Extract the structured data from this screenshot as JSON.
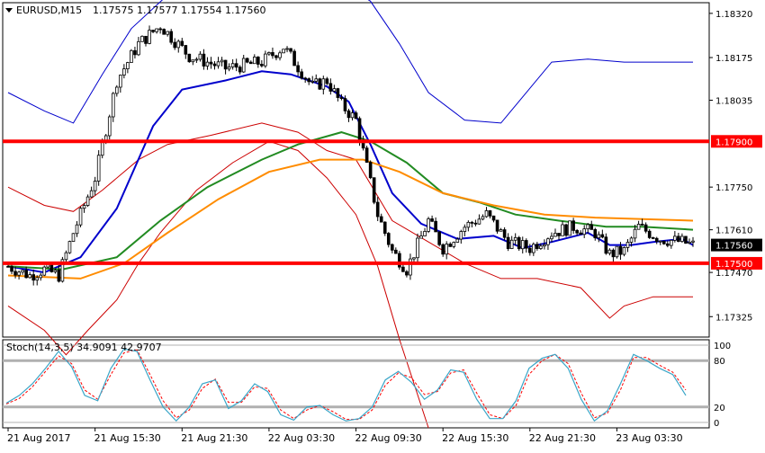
{
  "header": {
    "symbol": "EURUSD,M15",
    "ohlc": "1.17575 1.17577 1.17554 1.17560"
  },
  "colors": {
    "background": "#ffffff",
    "bull_candle": "#ffffff",
    "bear_candle": "#000000",
    "candle_outline": "#000000",
    "ma_fast": "#0000cc",
    "ma_mid": "#228b22",
    "ma_slow": "#ff8c00",
    "envelope_upper": "#0000cc",
    "envelope_lower": "#cc0000",
    "level_line": "#ff0000",
    "level_badge": "#ff0000",
    "price_badge": "#000000",
    "stoch_main": "#3aa6c8",
    "stoch_signal": "#ff0000",
    "stoch_level": "#b0b0b0"
  },
  "chart_data": {
    "type": "candlestick",
    "price_axis": {
      "ylim": [
        1.17258,
        1.18355
      ],
      "ticks": [
        "1.18320",
        "1.18175",
        "1.18035",
        "1.17750",
        "1.17610",
        "1.17470",
        "1.17325"
      ]
    },
    "time_axis": {
      "labels": [
        "21 Aug 2017",
        "21 Aug 15:30",
        "21 Aug 21:30",
        "22 Aug 03:30",
        "22 Aug 09:30",
        "22 Aug 15:30",
        "22 Aug 21:30",
        "23 Aug 03:30"
      ],
      "label_bars": [
        0,
        24,
        48,
        72,
        96,
        120,
        144,
        168
      ],
      "bar_count": 190
    },
    "price_path": [
      [
        0,
        1.1749
      ],
      [
        6,
        1.1746
      ],
      [
        10,
        1.1748
      ],
      [
        14,
        1.1746
      ],
      [
        18,
        1.176
      ],
      [
        24,
        1.1778
      ],
      [
        30,
        1.181
      ],
      [
        36,
        1.1822
      ],
      [
        42,
        1.1828
      ],
      [
        50,
        1.1818
      ],
      [
        60,
        1.1814
      ],
      [
        70,
        1.1816
      ],
      [
        76,
        1.1821
      ],
      [
        84,
        1.1808
      ],
      [
        88,
        1.181
      ],
      [
        92,
        1.1802
      ],
      [
        96,
        1.1797
      ],
      [
        102,
        1.1766
      ],
      [
        106,
        1.1754
      ],
      [
        110,
        1.1748
      ],
      [
        116,
        1.1764
      ],
      [
        120,
        1.1755
      ],
      [
        126,
        1.1762
      ],
      [
        132,
        1.1766
      ],
      [
        138,
        1.1757
      ],
      [
        144,
        1.1755
      ],
      [
        150,
        1.176
      ],
      [
        156,
        1.1762
      ],
      [
        162,
        1.176
      ],
      [
        166,
        1.1753
      ],
      [
        170,
        1.1754
      ],
      [
        174,
        1.1762
      ],
      [
        180,
        1.1758
      ],
      [
        186,
        1.1757
      ],
      [
        189,
        1.1756
      ]
    ],
    "series": [
      {
        "name": "",
        "role": "ma_fast",
        "points": [
          [
            0,
            1.1749
          ],
          [
            10,
            1.1747
          ],
          [
            20,
            1.1752
          ],
          [
            30,
            1.1768
          ],
          [
            40,
            1.1795
          ],
          [
            48,
            1.1807
          ],
          [
            60,
            1.181
          ],
          [
            70,
            1.1813
          ],
          [
            78,
            1.1812
          ],
          [
            88,
            1.1808
          ],
          [
            94,
            1.1803
          ],
          [
            100,
            1.1789
          ],
          [
            106,
            1.1773
          ],
          [
            114,
            1.1763
          ],
          [
            124,
            1.1758
          ],
          [
            134,
            1.1759
          ],
          [
            142,
            1.1755
          ],
          [
            150,
            1.1757
          ],
          [
            160,
            1.176
          ],
          [
            166,
            1.1756
          ],
          [
            172,
            1.1756
          ],
          [
            178,
            1.1757
          ],
          [
            186,
            1.1758
          ],
          [
            189,
            1.1756
          ]
        ]
      },
      {
        "name": "",
        "role": "ma_mid",
        "points": [
          [
            0,
            1.1749
          ],
          [
            15,
            1.1748
          ],
          [
            30,
            1.1752
          ],
          [
            42,
            1.1764
          ],
          [
            55,
            1.1775
          ],
          [
            70,
            1.1784
          ],
          [
            80,
            1.1789
          ],
          [
            92,
            1.1793
          ],
          [
            100,
            1.179
          ],
          [
            110,
            1.1783
          ],
          [
            120,
            1.1773
          ],
          [
            130,
            1.177
          ],
          [
            140,
            1.1766
          ],
          [
            152,
            1.1764
          ],
          [
            165,
            1.1762
          ],
          [
            175,
            1.1762
          ],
          [
            189,
            1.1761
          ]
        ]
      },
      {
        "name": "",
        "role": "ma_slow",
        "points": [
          [
            0,
            1.1746
          ],
          [
            20,
            1.1745
          ],
          [
            32,
            1.175
          ],
          [
            44,
            1.176
          ],
          [
            58,
            1.1771
          ],
          [
            72,
            1.178
          ],
          [
            86,
            1.1784
          ],
          [
            98,
            1.1784
          ],
          [
            108,
            1.178
          ],
          [
            120,
            1.1773
          ],
          [
            134,
            1.1769
          ],
          [
            148,
            1.1766
          ],
          [
            162,
            1.1765
          ],
          [
            189,
            1.1764
          ]
        ]
      },
      {
        "name": "",
        "role": "envelope_upper",
        "points": [
          [
            0,
            1.1806
          ],
          [
            10,
            1.18
          ],
          [
            18,
            1.1796
          ],
          [
            26,
            1.1812
          ],
          [
            34,
            1.1827
          ],
          [
            44,
            1.1838
          ],
          [
            56,
            1.1845
          ],
          [
            70,
            1.1845
          ],
          [
            88,
            1.1845
          ],
          [
            100,
            1.1836
          ],
          [
            108,
            1.1822
          ],
          [
            116,
            1.1806
          ],
          [
            126,
            1.1797
          ],
          [
            136,
            1.1796
          ],
          [
            150,
            1.1816
          ],
          [
            160,
            1.1817
          ],
          [
            170,
            1.1816
          ],
          [
            189,
            1.1816
          ]
        ]
      },
      {
        "name": "",
        "role": "envelope_mid",
        "points": [
          [
            0,
            1.1775
          ],
          [
            10,
            1.1769
          ],
          [
            18,
            1.1767
          ],
          [
            26,
            1.1774
          ],
          [
            36,
            1.1784
          ],
          [
            44,
            1.1789
          ],
          [
            56,
            1.1792
          ],
          [
            70,
            1.1796
          ],
          [
            80,
            1.1793
          ],
          [
            88,
            1.1787
          ],
          [
            96,
            1.1784
          ],
          [
            106,
            1.1764
          ],
          [
            116,
            1.1757
          ],
          [
            126,
            1.175
          ],
          [
            136,
            1.1745
          ],
          [
            146,
            1.1745
          ],
          [
            158,
            1.1742
          ],
          [
            166,
            1.1732
          ],
          [
            170,
            1.1736
          ],
          [
            178,
            1.1739
          ],
          [
            189,
            1.1739
          ]
        ]
      },
      {
        "name": "",
        "role": "envelope_lower",
        "points": [
          [
            0,
            1.1736
          ],
          [
            10,
            1.1728
          ],
          [
            16,
            1.172
          ],
          [
            22,
            1.1728
          ],
          [
            30,
            1.1738
          ],
          [
            36,
            1.175
          ],
          [
            42,
            1.176
          ],
          [
            52,
            1.1774
          ],
          [
            62,
            1.1783
          ],
          [
            72,
            1.179
          ],
          [
            80,
            1.1787
          ],
          [
            88,
            1.1778
          ],
          [
            96,
            1.1766
          ],
          [
            102,
            1.1749
          ],
          [
            108,
            1.1725
          ],
          [
            116,
            1.1696
          ]
        ]
      }
    ],
    "levels": [
      {
        "label": "1.17900",
        "value": 1.179
      },
      {
        "label": "1.17500",
        "value": 1.175
      }
    ],
    "current_price": {
      "label": "1.17560",
      "value": 1.1756
    },
    "stochastic": {
      "label": "Stoch(14,3,5) 34.9091 42.9707",
      "levels": [
        "100",
        "80",
        "20",
        "0"
      ],
      "ylim": [
        0,
        100
      ],
      "main": [
        [
          0,
          25
        ],
        [
          4,
          35
        ],
        [
          8,
          50
        ],
        [
          12,
          70
        ],
        [
          16,
          92
        ],
        [
          20,
          72
        ],
        [
          24,
          35
        ],
        [
          28,
          28
        ],
        [
          32,
          70
        ],
        [
          36,
          95
        ],
        [
          40,
          92
        ],
        [
          44,
          55
        ],
        [
          48,
          20
        ],
        [
          52,
          2
        ],
        [
          56,
          20
        ],
        [
          60,
          50
        ],
        [
          64,
          55
        ],
        [
          68,
          18
        ],
        [
          72,
          28
        ],
        [
          76,
          50
        ],
        [
          80,
          40
        ],
        [
          84,
          10
        ],
        [
          88,
          3
        ],
        [
          92,
          20
        ],
        [
          96,
          22
        ],
        [
          100,
          10
        ],
        [
          104,
          2
        ],
        [
          108,
          5
        ],
        [
          112,
          20
        ],
        [
          116,
          55
        ],
        [
          120,
          66
        ],
        [
          124,
          52
        ],
        [
          128,
          30
        ],
        [
          132,
          42
        ],
        [
          136,
          68
        ],
        [
          140,
          65
        ],
        [
          144,
          30
        ],
        [
          148,
          5
        ],
        [
          152,
          5
        ],
        [
          156,
          28
        ],
        [
          160,
          70
        ],
        [
          164,
          83
        ],
        [
          168,
          88
        ],
        [
          172,
          70
        ],
        [
          176,
          30
        ],
        [
          180,
          2
        ],
        [
          184,
          15
        ],
        [
          188,
          50
        ],
        [
          192,
          88
        ],
        [
          196,
          80
        ],
        [
          200,
          70
        ],
        [
          204,
          62
        ],
        [
          208,
          35
        ]
      ],
      "signal": [
        [
          0,
          24
        ],
        [
          4,
          31
        ],
        [
          8,
          46
        ],
        [
          12,
          66
        ],
        [
          16,
          86
        ],
        [
          20,
          76
        ],
        [
          24,
          42
        ],
        [
          28,
          30
        ],
        [
          32,
          62
        ],
        [
          36,
          90
        ],
        [
          40,
          94
        ],
        [
          44,
          62
        ],
        [
          48,
          28
        ],
        [
          52,
          6
        ],
        [
          56,
          16
        ],
        [
          60,
          44
        ],
        [
          64,
          56
        ],
        [
          68,
          26
        ],
        [
          72,
          26
        ],
        [
          76,
          46
        ],
        [
          80,
          44
        ],
        [
          84,
          16
        ],
        [
          88,
          5
        ],
        [
          92,
          16
        ],
        [
          96,
          22
        ],
        [
          100,
          14
        ],
        [
          104,
          4
        ],
        [
          108,
          4
        ],
        [
          112,
          16
        ],
        [
          116,
          48
        ],
        [
          120,
          64
        ],
        [
          124,
          58
        ],
        [
          128,
          36
        ],
        [
          132,
          40
        ],
        [
          136,
          64
        ],
        [
          140,
          68
        ],
        [
          144,
          38
        ],
        [
          148,
          10
        ],
        [
          152,
          5
        ],
        [
          156,
          22
        ],
        [
          160,
          62
        ],
        [
          164,
          80
        ],
        [
          168,
          88
        ],
        [
          172,
          76
        ],
        [
          176,
          38
        ],
        [
          180,
          6
        ],
        [
          184,
          12
        ],
        [
          188,
          42
        ],
        [
          192,
          84
        ],
        [
          196,
          84
        ],
        [
          200,
          74
        ],
        [
          204,
          65
        ],
        [
          208,
          42
        ]
      ],
      "x_domain": [
        0,
        208
      ]
    }
  }
}
